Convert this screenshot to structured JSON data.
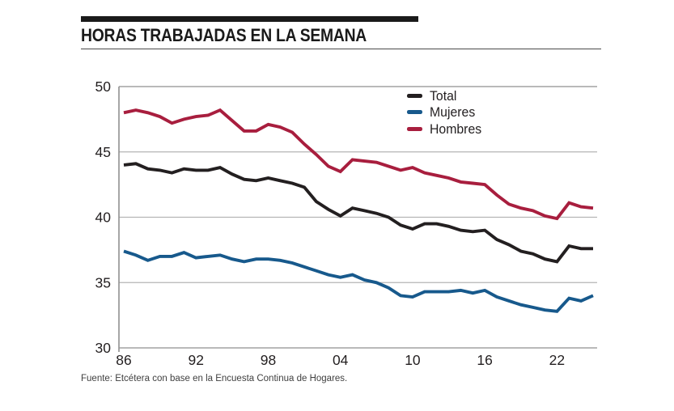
{
  "header": {
    "title": "HORAS TRABAJADAS EN LA SEMANA"
  },
  "footer": {
    "source": "Fuente: Etcétera con base en la Encuesta Continua de Hogares."
  },
  "colors": {
    "accent_bar": "#1a1a1a",
    "title_text": "#1a1a1a",
    "grid_line": "#b5b5b5",
    "axis_line": "#8f8f8f",
    "tick_text": "#231f20",
    "source_text": "#3f3f3f"
  },
  "chart_data": {
    "type": "line",
    "title": "HORAS TRABAJADAS EN LA SEMANA",
    "xlabel": "",
    "ylabel": "",
    "ylim": [
      30,
      50
    ],
    "yticks": [
      30,
      35,
      40,
      45,
      50
    ],
    "grid": "horizontal",
    "legend_position": "top-right-inside",
    "x_ticks": [
      {
        "label": "86",
        "year": 1986
      },
      {
        "label": "92",
        "year": 1992
      },
      {
        "label": "98",
        "year": 1998
      },
      {
        "label": "04",
        "year": 2004
      },
      {
        "label": "10",
        "year": 2010
      },
      {
        "label": "16",
        "year": 2016
      },
      {
        "label": "22",
        "year": 2022
      }
    ],
    "x": [
      1986,
      1987,
      1988,
      1989,
      1990,
      1991,
      1992,
      1993,
      1994,
      1995,
      1996,
      1997,
      1998,
      1999,
      2000,
      2001,
      2002,
      2003,
      2004,
      2005,
      2006,
      2007,
      2008,
      2009,
      2010,
      2011,
      2012,
      2013,
      2014,
      2015,
      2016,
      2017,
      2018,
      2019,
      2020,
      2021,
      2022,
      2023,
      2024,
      2025
    ],
    "series": [
      {
        "name": "Total",
        "color": "#231f20",
        "values": [
          44.0,
          44.1,
          43.7,
          43.6,
          43.4,
          43.7,
          43.6,
          43.6,
          43.8,
          43.3,
          42.9,
          42.8,
          43.0,
          42.8,
          42.6,
          42.3,
          41.2,
          40.6,
          40.1,
          40.7,
          40.5,
          40.3,
          40.0,
          39.4,
          39.1,
          39.5,
          39.5,
          39.3,
          39.0,
          38.9,
          39.0,
          38.3,
          37.9,
          37.4,
          37.2,
          36.8,
          36.6,
          37.8,
          37.6,
          37.6
        ]
      },
      {
        "name": "Mujeres",
        "color": "#17598c",
        "values": [
          37.4,
          37.1,
          36.7,
          37.0,
          37.0,
          37.3,
          36.9,
          37.0,
          37.1,
          36.8,
          36.6,
          36.8,
          36.8,
          36.7,
          36.5,
          36.2,
          35.9,
          35.6,
          35.4,
          35.6,
          35.2,
          35.0,
          34.6,
          34.0,
          33.9,
          34.3,
          34.3,
          34.3,
          34.4,
          34.2,
          34.4,
          33.9,
          33.6,
          33.3,
          33.1,
          32.9,
          32.8,
          33.8,
          33.6,
          34.0
        ]
      },
      {
        "name": "Hombres",
        "color": "#a81e3e",
        "values": [
          48.0,
          48.2,
          48.0,
          47.7,
          47.2,
          47.5,
          47.7,
          47.8,
          48.2,
          47.4,
          46.6,
          46.6,
          47.1,
          46.9,
          46.5,
          45.6,
          44.8,
          43.9,
          43.5,
          44.4,
          44.3,
          44.2,
          43.9,
          43.6,
          43.8,
          43.4,
          43.2,
          43.0,
          42.7,
          42.6,
          42.5,
          41.7,
          41.0,
          40.7,
          40.5,
          40.1,
          39.9,
          41.1,
          40.8,
          40.7
        ]
      }
    ]
  }
}
